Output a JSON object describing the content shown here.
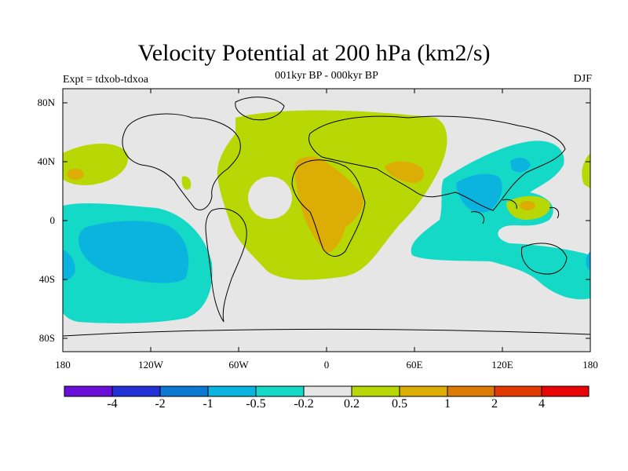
{
  "title": "Velocity Potential at 200 hPa (km2/s)",
  "subtitle": "001kyr BP - 000kyr BP",
  "left_label": "Expt = tdxob-tdxoa",
  "right_label": "DJF",
  "axes": {
    "lat_ticks": [
      "80N",
      "40N",
      "0",
      "40S",
      "80S"
    ],
    "lon_ticks": [
      "180",
      "120W",
      "60W",
      "0",
      "60E",
      "120E",
      "180"
    ]
  },
  "colorbar": {
    "labels": [
      "-4",
      "-2",
      "-1",
      "-0.5",
      "-0.2",
      "0.2",
      "0.5",
      "1",
      "2",
      "4"
    ],
    "colors": [
      "#6a0fd8",
      "#2231d6",
      "#0b78d3",
      "#0bb4de",
      "#13d9c6",
      "#e6e6e6",
      "#b8d805",
      "#dcad05",
      "#dc7a05",
      "#e03a03",
      "#e80305"
    ]
  },
  "colors": {
    "neg_05": "#13d9c6",
    "neg_1": "#0bb4de",
    "neutral": "#e6e6e6",
    "pos_02": "#b8d805",
    "pos_05": "#dcad05"
  }
}
